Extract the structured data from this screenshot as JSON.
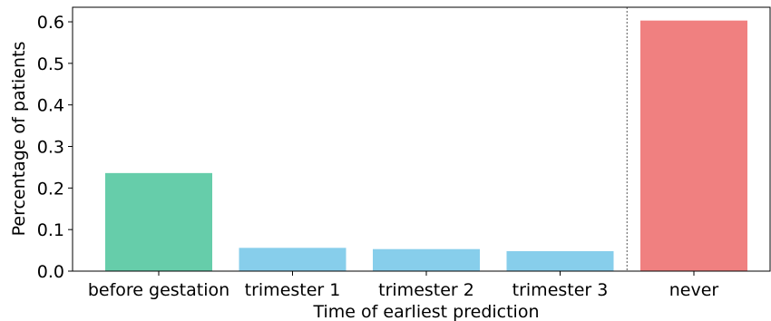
{
  "chart_data": {
    "type": "bar",
    "title": "",
    "xlabel": "Time of earliest prediction",
    "ylabel": "Percentage of patients",
    "ylim": [
      0,
      0.635
    ],
    "yticks": [
      "0.0",
      "0.1",
      "0.2",
      "0.3",
      "0.4",
      "0.5",
      "0.6"
    ],
    "categories": [
      "before gestation",
      "trimester 1",
      "trimester 2",
      "trimester 3",
      "never"
    ],
    "values": [
      0.236,
      0.056,
      0.053,
      0.048,
      0.603
    ],
    "bar_colors": [
      "#66cdaa",
      "#87ceeb",
      "#87ceeb",
      "#87ceeb",
      "#f08080"
    ],
    "separator": {
      "between": [
        "trimester 3",
        "never"
      ],
      "style": "dotted"
    },
    "grid": false,
    "legend": "none"
  }
}
